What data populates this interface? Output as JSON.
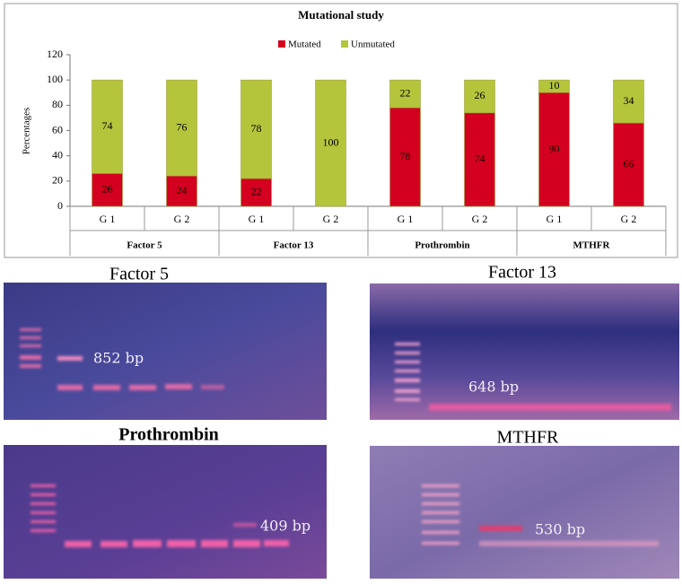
{
  "chart_data": {
    "type": "stacked-bar",
    "title": "Mutational study",
    "y_label": "Percentages",
    "categories": [
      "G 1",
      "G 2",
      "G 1",
      "G 2",
      "G 1",
      "G 2",
      "G 1",
      "G 2"
    ],
    "groups": [
      "Factor 5",
      "Factor 13",
      "Prothrombin",
      "MTHFR"
    ],
    "series": [
      {
        "name": "Mutated",
        "color": "#d4001f",
        "values": [
          26,
          24,
          22,
          0,
          78,
          74,
          90,
          66
        ]
      },
      {
        "name": "Unmutated",
        "color": "#b4c53c",
        "values": [
          74,
          76,
          78,
          100,
          22,
          26,
          10,
          34
        ]
      }
    ],
    "ylim": [
      0,
      120
    ],
    "yticks": [
      0,
      20,
      40,
      60,
      80,
      100,
      120
    ],
    "legend": "top"
  },
  "gels": [
    {
      "title": "Factor 5",
      "band_label": "852 bp"
    },
    {
      "title": "Factor 13",
      "band_label": "648 bp"
    },
    {
      "title": "Prothrombin",
      "band_label": "409 bp"
    },
    {
      "title": "MTHFR",
      "band_label": "530 bp"
    }
  ]
}
